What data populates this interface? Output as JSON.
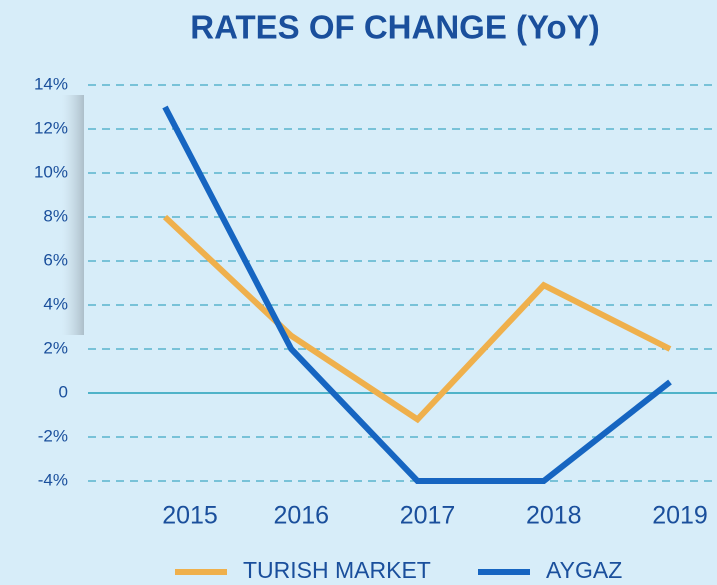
{
  "chart_data": {
    "type": "line",
    "title": "RATES OF  CHANGE (YoY)",
    "categories": [
      "2015",
      "2016",
      "2017",
      "2018",
      "2019"
    ],
    "series": [
      {
        "name": "TURISH MARKET",
        "color": "#efb04c",
        "values": [
          8,
          2.6,
          -1.2,
          4.9,
          2
        ]
      },
      {
        "name": "AYGAZ",
        "color": "#1665c1",
        "values": [
          13,
          2,
          -4,
          -4,
          0.5
        ]
      }
    ],
    "ylim": [
      -4,
      14
    ],
    "yticks": [
      {
        "value": -4,
        "label": "-4%"
      },
      {
        "value": -2,
        "label": "-2%"
      },
      0,
      {
        "value": 2,
        "label": "2%"
      },
      {
        "value": 4,
        "label": "4%"
      },
      {
        "value": 6,
        "label": "6%"
      },
      {
        "value": 8,
        "label": "8%"
      },
      {
        "value": 10,
        "label": "10%"
      },
      {
        "value": 12,
        "label": "12%"
      },
      {
        "value": 14,
        "label": "14%"
      }
    ],
    "grid": true
  }
}
